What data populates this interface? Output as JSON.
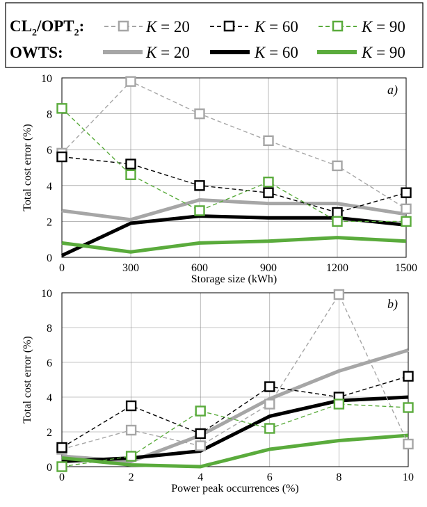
{
  "legend": {
    "row1_heading": "CL",
    "row1_sub1": "2",
    "row1_mid": "/OPT",
    "row1_sub2": "2",
    "row1_colon": ":",
    "row2_heading": "OWTS:",
    "k_symbol": "K",
    "entries": [
      {
        "label": " = 20",
        "color": "#a6a6a6"
      },
      {
        "label": " = 60",
        "color": "#000000"
      },
      {
        "label": " = 90",
        "color": "#5aab3c"
      }
    ]
  },
  "chart_data": [
    {
      "type": "line",
      "panel_label": "a)",
      "xlabel": "Storage size (kWh)",
      "ylabel": "Total cost error (%)",
      "x": [
        0,
        300,
        600,
        900,
        1200,
        1500
      ],
      "xticks": [
        "0",
        "300",
        "600",
        "900",
        "1200",
        "1500"
      ],
      "yticks": [
        "0",
        "2",
        "4",
        "6",
        "8",
        "10"
      ],
      "xlim": [
        0,
        1500
      ],
      "ylim": [
        0,
        10
      ],
      "grid": true,
      "series": [
        {
          "group": "CL2/OPT2",
          "name": "K = 20",
          "color": "#a6a6a6",
          "style": "dashed-square",
          "values": [
            5.8,
            9.8,
            8.0,
            6.5,
            5.1,
            2.7
          ]
        },
        {
          "group": "CL2/OPT2",
          "name": "K = 60",
          "color": "#000000",
          "style": "dashed-square",
          "values": [
            5.6,
            5.2,
            4.0,
            3.6,
            2.5,
            3.6
          ]
        },
        {
          "group": "CL2/OPT2",
          "name": "K = 90",
          "color": "#5aab3c",
          "style": "dashed-square",
          "values": [
            8.3,
            4.6,
            2.6,
            4.2,
            2.0,
            2.0
          ]
        },
        {
          "group": "OWTS",
          "name": "K = 20",
          "color": "#a6a6a6",
          "style": "thick",
          "values": [
            2.6,
            2.1,
            3.2,
            3.0,
            3.0,
            2.4
          ]
        },
        {
          "group": "OWTS",
          "name": "K = 60",
          "color": "#000000",
          "style": "thick",
          "values": [
            0.1,
            1.9,
            2.3,
            2.2,
            2.2,
            1.8
          ]
        },
        {
          "group": "OWTS",
          "name": "K = 90",
          "color": "#5aab3c",
          "style": "thick",
          "values": [
            0.8,
            0.3,
            0.8,
            0.9,
            1.1,
            0.9
          ]
        }
      ]
    },
    {
      "type": "line",
      "panel_label": "b)",
      "xlabel": "Power peak occurrences (%)",
      "ylabel": "Total cost error (%)",
      "x": [
        0,
        2,
        4,
        6,
        8,
        10
      ],
      "xticks": [
        "0",
        "2",
        "4",
        "6",
        "8",
        "10"
      ],
      "yticks": [
        "0",
        "2",
        "4",
        "6",
        "8",
        "10"
      ],
      "xlim": [
        0,
        10
      ],
      "ylim": [
        0,
        10
      ],
      "grid": true,
      "series": [
        {
          "group": "CL2/OPT2",
          "name": "K = 20",
          "color": "#a6a6a6",
          "style": "dashed-square",
          "values": [
            1.0,
            2.1,
            1.2,
            3.6,
            9.9,
            1.3
          ]
        },
        {
          "group": "CL2/OPT2",
          "name": "K = 60",
          "color": "#000000",
          "style": "dashed-square",
          "values": [
            1.1,
            3.5,
            1.9,
            4.6,
            4.0,
            5.2
          ]
        },
        {
          "group": "CL2/OPT2",
          "name": "K = 90",
          "color": "#5aab3c",
          "style": "dashed-square",
          "values": [
            0.0,
            0.6,
            3.2,
            2.2,
            3.6,
            3.4
          ]
        },
        {
          "group": "OWTS",
          "name": "K = 20",
          "color": "#a6a6a6",
          "style": "thick",
          "values": [
            0.6,
            0.3,
            1.8,
            3.9,
            5.5,
            6.7
          ]
        },
        {
          "group": "OWTS",
          "name": "K = 60",
          "color": "#000000",
          "style": "thick",
          "values": [
            0.3,
            0.5,
            0.9,
            2.9,
            3.8,
            4.0
          ]
        },
        {
          "group": "OWTS",
          "name": "K = 90",
          "color": "#5aab3c",
          "style": "thick",
          "values": [
            0.5,
            0.1,
            0.0,
            1.0,
            1.5,
            1.8
          ]
        }
      ]
    }
  ]
}
